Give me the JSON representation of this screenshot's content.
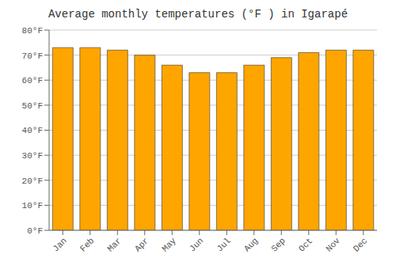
{
  "chart_data": {
    "type": "bar",
    "title": "Average monthly temperatures (°F ) in Igarapé",
    "categories": [
      "Jan",
      "Feb",
      "Mar",
      "Apr",
      "May",
      "Jun",
      "Jul",
      "Aug",
      "Sep",
      "Oct",
      "Nov",
      "Dec"
    ],
    "values": [
      73,
      73,
      72,
      70,
      66,
      63,
      63,
      66,
      69,
      71,
      72,
      72
    ],
    "color": "#FFA500",
    "ylim": [
      0,
      80
    ],
    "yticks": [
      {
        "value": 0,
        "label": "0°F"
      },
      {
        "value": 10,
        "label": "10°F"
      },
      {
        "value": 20,
        "label": "20°F"
      },
      {
        "value": 30,
        "label": "30°F"
      },
      {
        "value": 40,
        "label": "40°F"
      },
      {
        "value": 50,
        "label": "50°F"
      },
      {
        "value": 60,
        "label": "60°F"
      },
      {
        "value": 70,
        "label": "70°F"
      },
      {
        "value": 80,
        "label": "80°F"
      }
    ],
    "grid": true
  }
}
